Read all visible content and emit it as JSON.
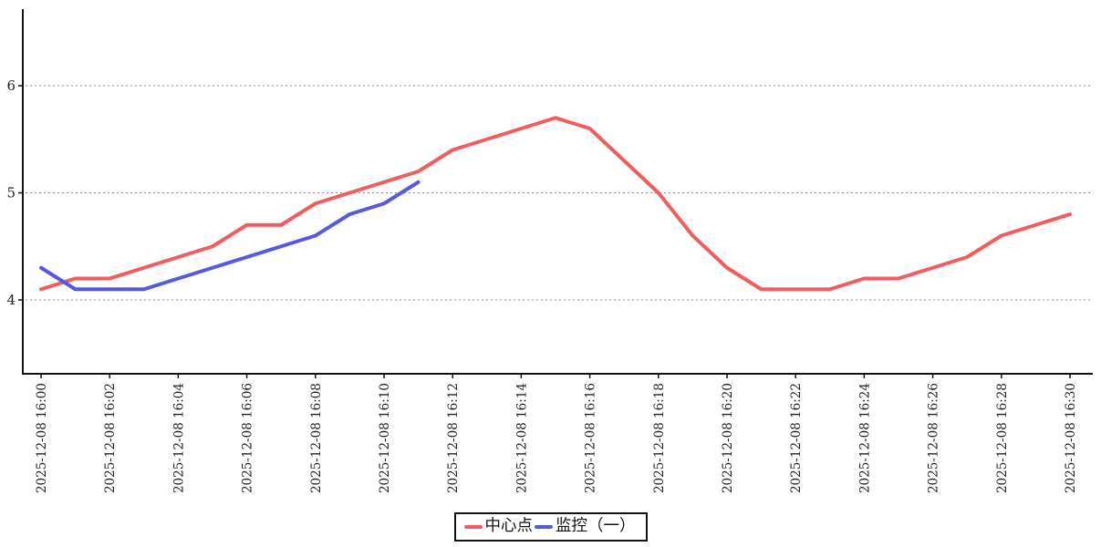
{
  "chart_data": {
    "type": "line",
    "title": "",
    "xlabel": "",
    "ylabel": "",
    "y_tick_labels": [
      "4",
      "5",
      "6"
    ],
    "y_ticks": [
      4,
      5,
      6
    ],
    "ylim": [
      3.31,
      6.71
    ],
    "grid": "horizontal dotted",
    "grid_color": "#8a8a8a",
    "axis_color": "#111111",
    "legend_position": "bottom-center",
    "x_tick_labels": [
      "2025-12-08 16:00",
      "2025-12-08 16:02",
      "2025-12-08 16:04",
      "2025-12-08 16:06",
      "2025-12-08 16:08",
      "2025-12-08 16:10",
      "2025-12-08 16:12",
      "2025-12-08 16:14",
      "2025-12-08 16:16",
      "2025-12-08 16:18",
      "2025-12-08 16:20",
      "2025-12-08 16:22",
      "2025-12-08 16:24",
      "2025-12-08 16:26",
      "2025-12-08 16:28",
      "2025-12-08 16:30"
    ],
    "x_tick_interval_minutes": 2,
    "x_start_label": "2025-12-08 16:00",
    "x_end_label": "2025-12-08 16:30",
    "series": [
      {
        "name": "中心点",
        "color": "#f05d5d",
        "start_minute": 0,
        "values": [
          4.1,
          4.2,
          4.2,
          4.3,
          4.4,
          4.5,
          4.7,
          4.7,
          4.9,
          5.0,
          5.1,
          5.2,
          5.4,
          5.5,
          5.6,
          5.7,
          5.6,
          5.3,
          5.0,
          4.6,
          4.3,
          4.1,
          4.1,
          4.1,
          4.2,
          4.2,
          4.3,
          4.4,
          4.6,
          4.7,
          4.8
        ]
      },
      {
        "name": "监控（一）",
        "color": "#5659e0",
        "start_minute": 0,
        "values": [
          4.3,
          4.1,
          4.1,
          4.1,
          4.2,
          4.3,
          4.4,
          4.5,
          4.6,
          4.8,
          4.9,
          5.1
        ]
      }
    ]
  }
}
